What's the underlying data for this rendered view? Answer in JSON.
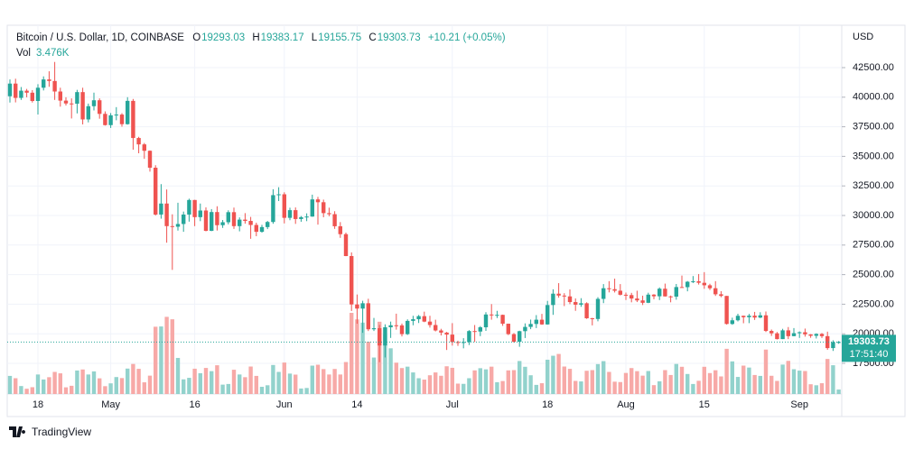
{
  "chart_data": {
    "type": "candlestick",
    "symbol": "Bitcoin / U.S. Dollar, 1D, COINBASE",
    "ohlc_letters": [
      "O",
      "H",
      "L",
      "C"
    ],
    "change": "+10.21 (+0.05%)",
    "volume_name": "Vol",
    "volume_last_label": "3.476K",
    "currency": "USD",
    "countdown": "17:51:40",
    "brand": "TradingView",
    "up_color": "#26a69a",
    "down_color": "#ef5350",
    "volume_up_color": "#92d2cc",
    "volume_down_color": "#f7a9a7",
    "grid": true,
    "categories": [
      null,
      null,
      null,
      null,
      null,
      "18",
      null,
      null,
      null,
      null,
      null,
      null,
      null,
      null,
      null,
      null,
      null,
      null,
      "May",
      null,
      null,
      null,
      null,
      null,
      null,
      null,
      null,
      null,
      null,
      null,
      null,
      null,
      null,
      "16",
      null,
      null,
      null,
      null,
      null,
      null,
      null,
      null,
      null,
      null,
      null,
      null,
      null,
      null,
      null,
      "Jun",
      null,
      null,
      null,
      null,
      null,
      null,
      null,
      null,
      null,
      null,
      null,
      null,
      "14",
      null,
      null,
      null,
      null,
      null,
      null,
      null,
      null,
      null,
      null,
      null,
      null,
      null,
      null,
      null,
      null,
      "Jul",
      null,
      null,
      null,
      null,
      null,
      null,
      null,
      null,
      null,
      null,
      null,
      null,
      null,
      null,
      null,
      null,
      "18",
      null,
      null,
      null,
      null,
      null,
      null,
      null,
      null,
      null,
      null,
      null,
      null,
      null,
      "Aug",
      null,
      null,
      null,
      null,
      null,
      null,
      null,
      null,
      null,
      null,
      null,
      null,
      null,
      "15",
      null,
      null,
      null,
      null,
      null,
      null,
      null,
      null,
      null,
      null,
      null,
      null,
      null,
      null,
      null,
      null,
      "Sep",
      null,
      null,
      null,
      null,
      null,
      null,
      null
    ],
    "open": [
      40080,
      41150,
      39940,
      40550,
      40380,
      39680,
      40800,
      41500,
      41370,
      40480,
      39710,
      39470,
      39450,
      40430,
      38120,
      39240,
      39740,
      38590,
      37640,
      38470,
      38530,
      37720,
      39690,
      36550,
      36010,
      35470,
      34040,
      30080,
      31010,
      29100,
      29050,
      29280,
      30080,
      31310,
      29860,
      30420,
      28700,
      30290,
      29180,
      29430,
      30280,
      29100,
      29650,
      29540,
      29200,
      28620,
      29020,
      29450,
      31720,
      31790,
      29800,
      30450,
      29700,
      29860,
      29910,
      31360,
      31120,
      30200,
      30110,
      29090,
      28420,
      26570,
      22480,
      22130,
      22580,
      20380,
      20470,
      19010,
      20550,
      20720,
      20710,
      19970,
      21090,
      21230,
      21490,
      21030,
      20740,
      20280,
      20100,
      19930,
      19300,
      19240,
      19300,
      20230,
      20190,
      20550,
      21630,
      21590,
      21600,
      20850,
      19970,
      19330,
      20220,
      20580,
      20830,
      21190,
      20790,
      22430,
      23390,
      23230,
      23160,
      22680,
      22460,
      22580,
      21310,
      21250,
      22950,
      23850,
      23770,
      23640,
      23300,
      23270,
      22980,
      22820,
      22620,
      23310,
      23170,
      23810,
      23160,
      23140,
      23950,
      23940,
      24400,
      24440,
      24310,
      24100,
      23850,
      23340,
      23200,
      20830,
      21140,
      21520,
      21400,
      21530,
      21370,
      21560,
      20240,
      20040,
      19550,
      20290,
      19800,
      20050,
      20130,
      19950,
      19830,
      19990,
      19800,
      18790,
      19293.03
    ],
    "high": [
      41500,
      41560,
      40860,
      40700,
      40600,
      41100,
      41760,
      42190,
      42980,
      40800,
      39990,
      39900,
      40620,
      40800,
      39460,
      40380,
      39900,
      38800,
      38660,
      39160,
      38650,
      40000,
      39850,
      36650,
      36130,
      35500,
      34250,
      32650,
      32200,
      30100,
      31080,
      30330,
      31420,
      31320,
      31010,
      30690,
      30540,
      30780,
      29620,
      30440,
      30670,
      29840,
      30200,
      29880,
      29390,
      29210,
      29540,
      32220,
      32390,
      31960,
      30660,
      30680,
      29950,
      30180,
      31760,
      31570,
      31340,
      30660,
      30360,
      29440,
      28550,
      26880,
      23320,
      22790,
      22960,
      21340,
      20750,
      20800,
      21030,
      21700,
      20860,
      21220,
      21520,
      21590,
      21870,
      21520,
      21190,
      20420,
      20160,
      20900,
      19420,
      19630,
      20310,
      20740,
      20650,
      21830,
      22510,
      21940,
      21620,
      20860,
      20060,
      20260,
      20880,
      21200,
      21580,
      21680,
      22780,
      23760,
      24280,
      23430,
      23750,
      22990,
      23010,
      22660,
      21350,
      23090,
      24200,
      24450,
      24660,
      24200,
      23480,
      23460,
      23640,
      23220,
      23470,
      23350,
      23920,
      24240,
      23230,
      24210,
      24920,
      24460,
      24880,
      25050,
      25210,
      24230,
      24450,
      23600,
      23200,
      21360,
      21690,
      21540,
      21680,
      21850,
      21820,
      21880,
      20360,
      20150,
      20420,
      20570,
      20480,
      20200,
      20440,
      19970,
      20040,
      20060,
      20180,
      19450,
      19383.17
    ],
    "low": [
      39550,
      39560,
      39770,
      39990,
      39550,
      38540,
      40570,
      40880,
      39770,
      39200,
      39300,
      38200,
      38630,
      37700,
      37870,
      38880,
      38180,
      37600,
      37400,
      38050,
      37510,
      37680,
      35560,
      35260,
      34790,
      33710,
      30000,
      29730,
      27700,
      25400,
      28720,
      28620,
      29480,
      29100,
      29520,
      28670,
      28680,
      28730,
      28950,
      29250,
      28870,
      28660,
      29310,
      28030,
      28250,
      28550,
      28850,
      29300,
      31220,
      29330,
      29600,
      29290,
      29470,
      29520,
      29890,
      29230,
      29850,
      29940,
      28870,
      28110,
      26560,
      21930,
      20850,
      20080,
      20230,
      20230,
      17600,
      18000,
      19650,
      20350,
      19780,
      19900,
      20720,
      20910,
      20980,
      20520,
      20200,
      19860,
      18630,
      19000,
      18980,
      18770,
      19050,
      19310,
      19800,
      20240,
      21190,
      21330,
      20670,
      19890,
      19240,
      18900,
      19640,
      20390,
      20480,
      20760,
      20770,
      21600,
      23050,
      22340,
      22500,
      21940,
      22280,
      21260,
      20710,
      21050,
      22590,
      23500,
      23490,
      23240,
      22850,
      22660,
      22680,
      22430,
      22590,
      22920,
      22850,
      23150,
      22660,
      22880,
      23900,
      23590,
      24290,
      24160,
      23800,
      23700,
      23200,
      23090,
      20780,
      20760,
      21040,
      20890,
      20900,
      21170,
      21320,
      20150,
      19820,
      19520,
      19550,
      19550,
      19790,
      19650,
      19760,
      19660,
      19600,
      19640,
      18650,
      18550,
      19155.75
    ],
    "close": [
      41150,
      39940,
      40550,
      40380,
      39680,
      40800,
      41500,
      41370,
      40480,
      39710,
      39470,
      39450,
      40430,
      38120,
      39240,
      39740,
      38590,
      37640,
      38470,
      38530,
      37720,
      39690,
      36550,
      36010,
      35470,
      34040,
      30080,
      31010,
      29100,
      29050,
      29280,
      30080,
      31310,
      29860,
      30420,
      28700,
      30290,
      29180,
      29430,
      30280,
      29100,
      29650,
      29540,
      29200,
      28620,
      29020,
      29450,
      31720,
      31790,
      29800,
      30450,
      29700,
      29860,
      29910,
      31360,
      31120,
      30200,
      30110,
      29090,
      28420,
      26570,
      22480,
      22130,
      22580,
      20380,
      20470,
      19010,
      20550,
      20720,
      20710,
      19970,
      21090,
      21230,
      21490,
      21030,
      20740,
      20280,
      20100,
      19930,
      19300,
      19240,
      19300,
      20230,
      20190,
      20550,
      21630,
      21590,
      21600,
      20850,
      19970,
      19330,
      20220,
      20580,
      20830,
      21190,
      20790,
      22430,
      23390,
      23230,
      23160,
      22680,
      22460,
      22580,
      21310,
      21250,
      22950,
      23850,
      23770,
      23640,
      23300,
      23270,
      22980,
      22820,
      22620,
      23310,
      23170,
      23810,
      23160,
      23140,
      23950,
      23940,
      24400,
      24440,
      24310,
      24100,
      23850,
      23340,
      23200,
      20830,
      21140,
      21520,
      21400,
      21530,
      21370,
      21560,
      20240,
      20040,
      19550,
      20290,
      19800,
      20050,
      20130,
      19950,
      19830,
      19990,
      19800,
      18790,
      19293.52,
      19303.73
    ],
    "volume": [
      14.1,
      12.3,
      6.2,
      4.1,
      5.3,
      15.2,
      11.3,
      13.1,
      17.2,
      16.1,
      5.2,
      6.4,
      18.3,
      19.1,
      15.2,
      17.6,
      12.2,
      6.1,
      8.3,
      13.2,
      12.4,
      19.8,
      23.4,
      19.6,
      9.1,
      14.3,
      52.4,
      52.6,
      60.1,
      58.2,
      28.1,
      11.4,
      12.6,
      19.7,
      16.2,
      20.3,
      17.8,
      22.4,
      7.3,
      7.8,
      18.9,
      15.2,
      13.1,
      21.4,
      14.1,
      5.6,
      6.8,
      22.6,
      17.2,
      24.5,
      15.9,
      15.1,
      4.3,
      4.7,
      22.1,
      22.8,
      19.4,
      15.2,
      19.5,
      15.2,
      24.9,
      63.2,
      58.1,
      55.6,
      40.7,
      28.4,
      56.3,
      46.2,
      35.6,
      24.4,
      20.2,
      21.3,
      16.8,
      12.3,
      11.2,
      14.6,
      16.8,
      14.2,
      21.6,
      20.4,
      8.1,
      7.9,
      12.3,
      18.4,
      20.1,
      19.2,
      21.3,
      9.2,
      10.1,
      18.4,
      18.6,
      25.7,
      21.2,
      14.6,
      7.1,
      8.4,
      26.7,
      29.8,
      31.2,
      21.4,
      19.6,
      10.2,
      9.8,
      18.1,
      18.6,
      23.3,
      25.6,
      17.2,
      9.6,
      9.3,
      16.4,
      20.2,
      17.8,
      14.3,
      17.9,
      6.9,
      9.9,
      18.6,
      14.8,
      23.4,
      21.2,
      15.6,
      7.8,
      10.3,
      21.2,
      16.3,
      18.5,
      13.7,
      35.2,
      25.4,
      13.3,
      22.1,
      20.6,
      14.8,
      14.1,
      34.6,
      14.2,
      10.2,
      22.9,
      25.8,
      19.3,
      18.2,
      17.9,
      7.6,
      6.8,
      8.4,
      27.3,
      22.4,
      3.476
    ],
    "ylim": [
      14909,
      46082
    ],
    "yticks": [
      {
        "value": 17500,
        "label": "17500.00"
      },
      {
        "value": 20000,
        "label": "20000.00"
      },
      {
        "value": 22500,
        "label": "22500.00"
      },
      {
        "value": 25000,
        "label": "25000.00"
      },
      {
        "value": 27500,
        "label": "27500.00"
      },
      {
        "value": 30000,
        "label": "30000.00"
      },
      {
        "value": 32500,
        "label": "32500.00"
      },
      {
        "value": 35000,
        "label": "35000.00"
      },
      {
        "value": 37500,
        "label": "37500.00"
      },
      {
        "value": 40000,
        "label": "40000.00"
      },
      {
        "value": 42500,
        "label": "42500.00"
      }
    ]
  }
}
